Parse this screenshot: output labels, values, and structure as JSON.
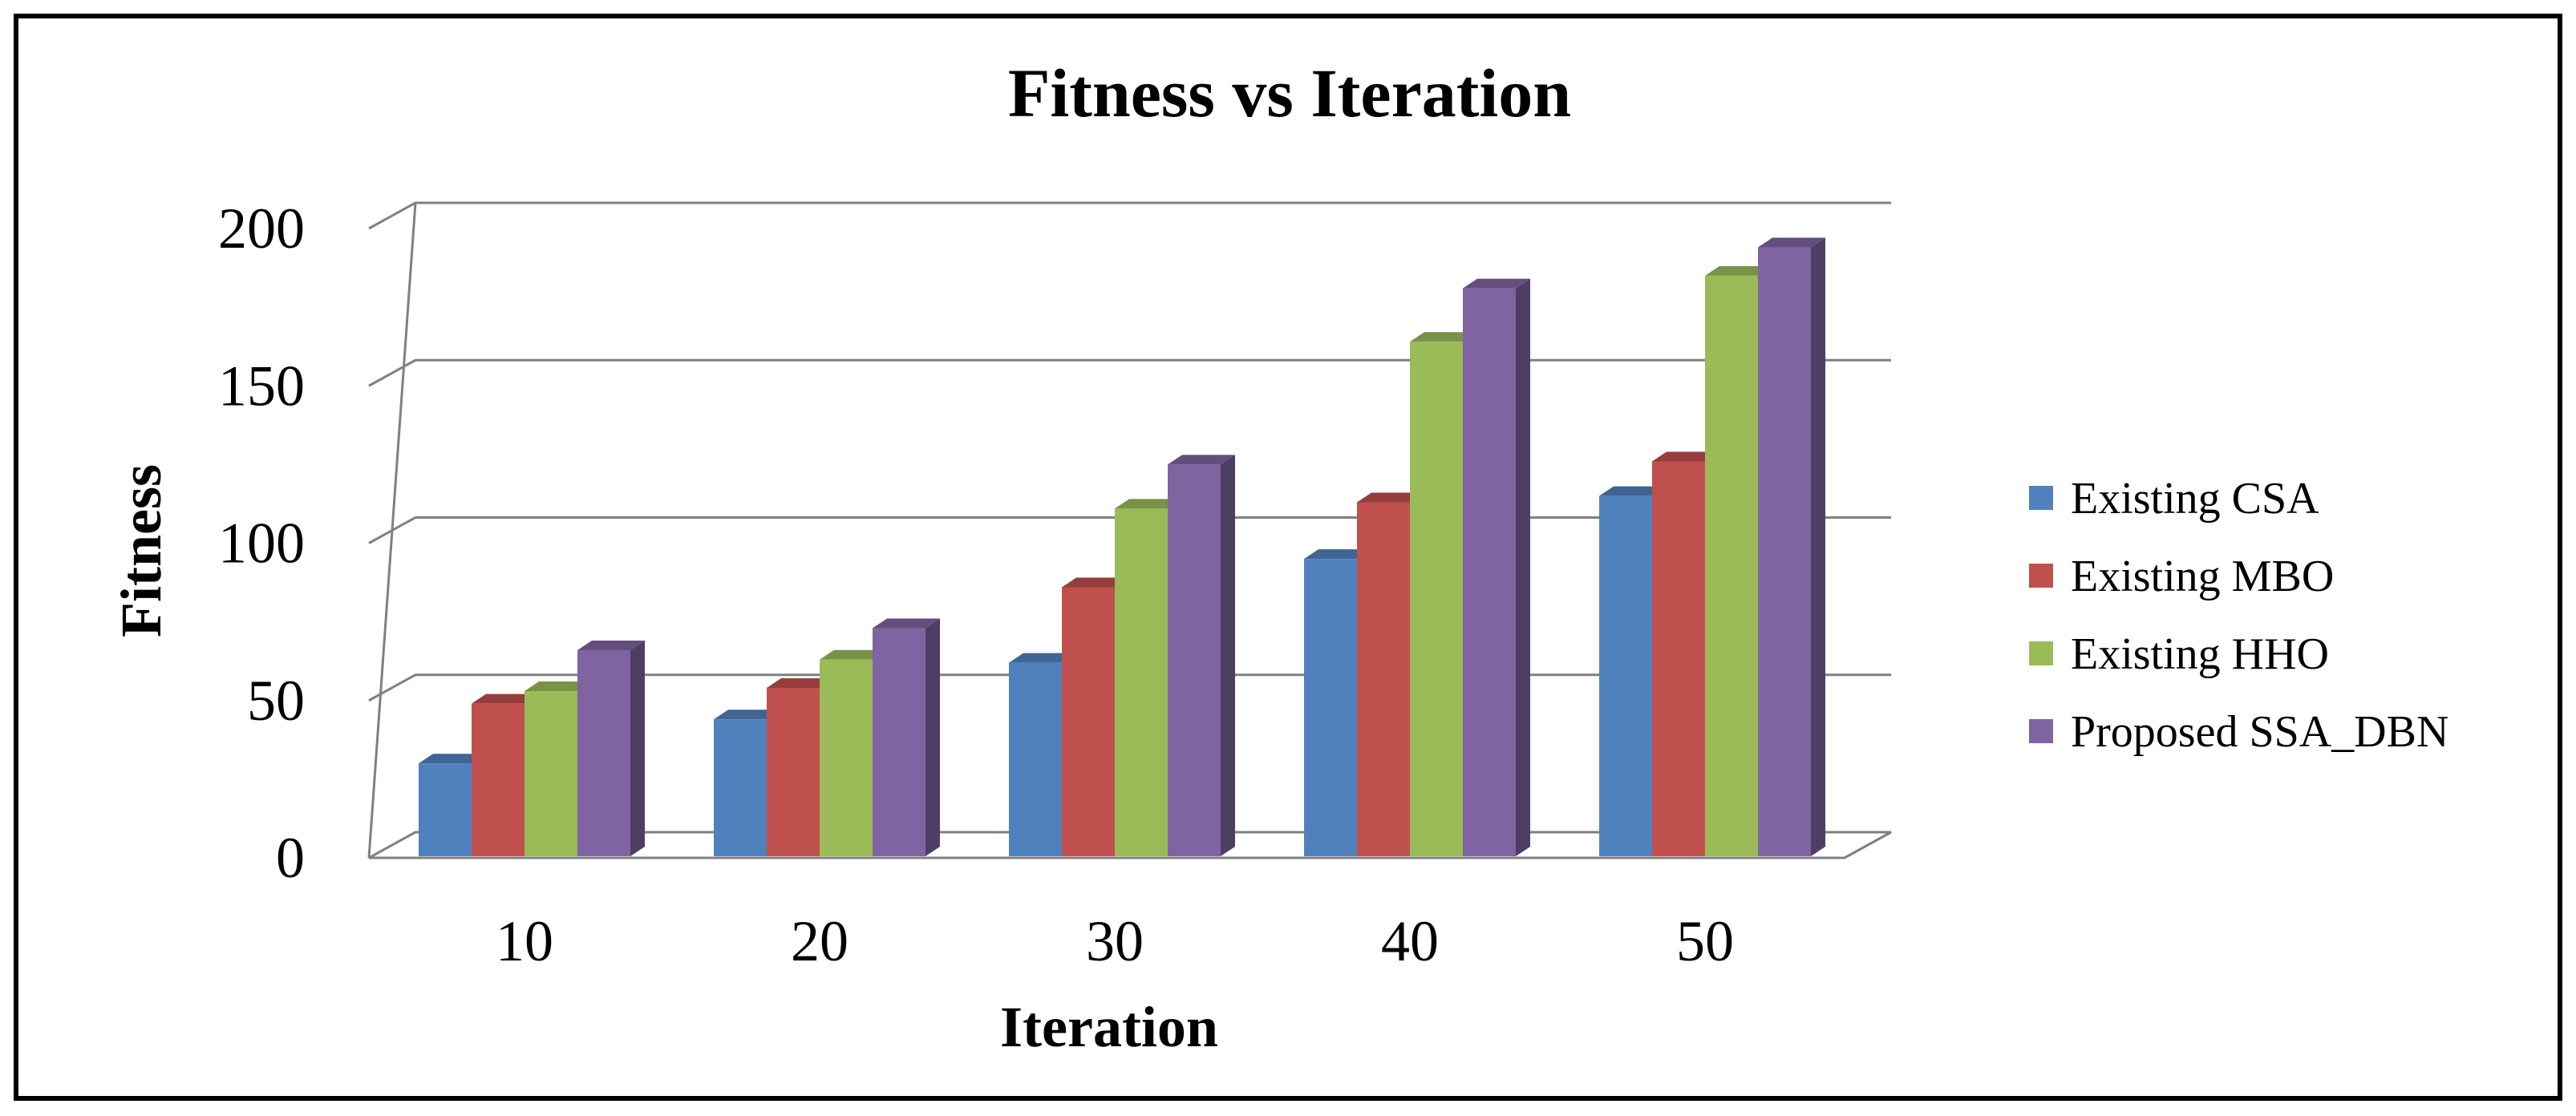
{
  "chart_data": {
    "type": "bar",
    "title": "Fitness vs Iteration",
    "xlabel": "Iteration",
    "ylabel": "Fitness",
    "categories": [
      "10",
      "20",
      "30",
      "40",
      "50"
    ],
    "ylim": [
      0,
      200
    ],
    "yticks": [
      "0",
      "50",
      "100",
      "150",
      "200"
    ],
    "grid": true,
    "legend_position": "right",
    "series": [
      {
        "name": "Existing CSA",
        "color": "#4F81BD",
        "values": [
          30,
          44,
          62,
          95,
          115
        ]
      },
      {
        "name": "Existing MBO",
        "color": "#C0504D",
        "values": [
          49,
          54,
          86,
          113,
          126
        ]
      },
      {
        "name": "Existing HHO",
        "color": "#9BBB59",
        "values": [
          53,
          63,
          111,
          164,
          185
        ]
      },
      {
        "name": "Proposed SSA_DBN",
        "color": "#8064A2",
        "values": [
          66,
          73,
          125,
          181,
          194
        ]
      }
    ]
  }
}
